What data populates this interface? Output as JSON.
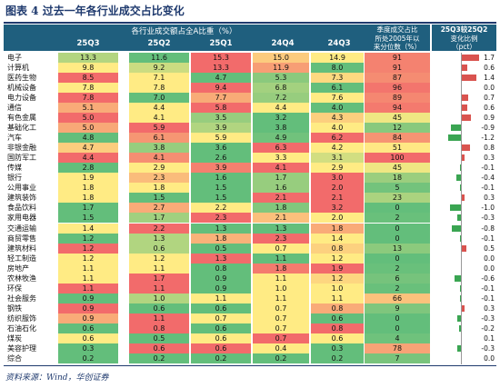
{
  "title": "图表 4    过去一年各行业成交占比变化",
  "header": {
    "share_title": "各行业成交额占全A比重（%）",
    "quarters": [
      "25Q3",
      "25Q2",
      "25Q1",
      "24Q4",
      "24Q3"
    ],
    "percentile_title": "季度成交占比\n所处2005年以\n来分位数（%）",
    "change_title_1": "25Q3较25Q2",
    "change_title_2": "变化比例",
    "change_title_3": "（pct）"
  },
  "source": "资料来源：Wind，华创证券",
  "colors": {
    "header": "#1f5f7e",
    "high": "#f26b6b",
    "mid": "#ffeb84",
    "low": "#63be7b",
    "pos_bar": "#d9534f",
    "neg_bar": "#3aa552"
  },
  "chart_data": {
    "type": "table",
    "title": "过去一年各行业成交占比变化",
    "columns": [
      "25Q3",
      "25Q2",
      "25Q1",
      "24Q4",
      "24Q3",
      "季度成交占比所处2005年以来分位数（%）",
      "25Q3较25Q2变化比例（pct）"
    ],
    "rows": [
      {
        "industry": "电子",
        "values": [
          13.3,
          11.6,
          15.3,
          15.0,
          14.9
        ],
        "percentile": 91,
        "change": 1.7
      },
      {
        "industry": "计算机",
        "values": [
          9.8,
          9.2,
          13.3,
          11.9,
          8.0
        ],
        "percentile": 91,
        "change": 0.6
      },
      {
        "industry": "医药生物",
        "values": [
          8.5,
          7.1,
          4.7,
          5.3,
          7.3
        ],
        "percentile": 87,
        "change": 1.4
      },
      {
        "industry": "机械设备",
        "values": [
          7.8,
          7.8,
          9.4,
          6.8,
          6.1
        ],
        "percentile": 96,
        "change": 0.0
      },
      {
        "industry": "电力设备",
        "values": [
          7.8,
          7.0,
          7.7,
          7.2,
          7.6
        ],
        "percentile": 89,
        "change": 0.7
      },
      {
        "industry": "通信",
        "values": [
          5.1,
          4.4,
          5.8,
          4.4,
          4.0
        ],
        "percentile": 94,
        "change": 0.6
      },
      {
        "industry": "有色金属",
        "values": [
          5.0,
          4.1,
          3.5,
          3.2,
          4.3
        ],
        "percentile": 45,
        "change": 0.9
      },
      {
        "industry": "基础化工",
        "values": [
          5.0,
          5.9,
          3.9,
          3.8,
          4.0
        ],
        "percentile": 12,
        "change": -0.9
      },
      {
        "industry": "汽车",
        "values": [
          4.8,
          6.1,
          5.9,
          4.9,
          6.2
        ],
        "percentile": 84,
        "change": -1.2
      },
      {
        "industry": "非银金融",
        "values": [
          4.7,
          3.8,
          3.6,
          6.3,
          4.2
        ],
        "percentile": 51,
        "change": 0.8
      },
      {
        "industry": "国防军工",
        "values": [
          4.4,
          4.1,
          2.6,
          3.3,
          3.1
        ],
        "percentile": 100,
        "change": 0.3
      },
      {
        "industry": "传媒",
        "values": [
          2.8,
          2.9,
          3.9,
          4.1,
          2.9
        ],
        "percentile": 45,
        "change": -0.1
      },
      {
        "industry": "银行",
        "values": [
          1.9,
          2.3,
          1.6,
          1.7,
          3.0
        ],
        "percentile": 18,
        "change": -0.4
      },
      {
        "industry": "公用事业",
        "values": [
          1.8,
          1.8,
          1.5,
          1.6,
          2.0
        ],
        "percentile": 5,
        "change": -0.1
      },
      {
        "industry": "建筑装饰",
        "values": [
          1.8,
          1.5,
          1.5,
          2.1,
          2.1
        ],
        "percentile": 23,
        "change": 0.3
      },
      {
        "industry": "食品饮料",
        "values": [
          1.7,
          2.7,
          2.2,
          1.8,
          3.2
        ],
        "percentile": 0,
        "change": -1.0
      },
      {
        "industry": "家用电器",
        "values": [
          1.5,
          1.7,
          2.3,
          2.1,
          2.0
        ],
        "percentile": 2,
        "change": -0.3
      },
      {
        "industry": "交通运输",
        "values": [
          1.4,
          2.2,
          1.3,
          1.3,
          1.8
        ],
        "percentile": 0,
        "change": -0.8
      },
      {
        "industry": "商贸零售",
        "values": [
          1.2,
          1.3,
          1.8,
          2.3,
          1.4
        ],
        "percentile": 0,
        "change": -0.1
      },
      {
        "industry": "建筑材料",
        "values": [
          1.2,
          0.6,
          0.5,
          0.7,
          0.8
        ],
        "percentile": 13,
        "change": 0.5
      },
      {
        "industry": "轻工制造",
        "values": [
          1.2,
          1.2,
          1.3,
          1.1,
          1.2
        ],
        "percentile": 0,
        "change": 0.0
      },
      {
        "industry": "房地产",
        "values": [
          1.1,
          1.1,
          0.8,
          1.8,
          1.9
        ],
        "percentile": 2,
        "change": 0.0
      },
      {
        "industry": "农林牧渔",
        "values": [
          1.1,
          1.7,
          0.9,
          1.1,
          1.2
        ],
        "percentile": 6,
        "change": -0.6
      },
      {
        "industry": "环保",
        "values": [
          1.1,
          1.1,
          0.9,
          1.0,
          1.0
        ],
        "percentile": 2,
        "change": -0.1
      },
      {
        "industry": "社会服务",
        "values": [
          0.9,
          1.0,
          1.1,
          1.1,
          1.1
        ],
        "percentile": 66,
        "change": -0.1
      },
      {
        "industry": "钢铁",
        "values": [
          0.9,
          0.6,
          0.6,
          0.7,
          0.8
        ],
        "percentile": 9,
        "change": 0.3
      },
      {
        "industry": "纺织服饰",
        "values": [
          0.9,
          1.1,
          0.7,
          0.7,
          0.6
        ],
        "percentile": 0,
        "change": -0.3
      },
      {
        "industry": "石油石化",
        "values": [
          0.6,
          0.8,
          0.6,
          0.7,
          0.8
        ],
        "percentile": 0,
        "change": -0.2
      },
      {
        "industry": "煤炭",
        "values": [
          0.6,
          0.5,
          0.6,
          0.7,
          0.6
        ],
        "percentile": 4,
        "change": 0.1
      },
      {
        "industry": "美容护理",
        "values": [
          0.3,
          0.6,
          0.6,
          0.4,
          0.3
        ],
        "percentile": 78,
        "change": -0.3
      },
      {
        "industry": "综合",
        "values": [
          0.2,
          0.2,
          0.2,
          0.2,
          0.2
        ],
        "percentile": 7,
        "change": 0.0
      }
    ]
  }
}
